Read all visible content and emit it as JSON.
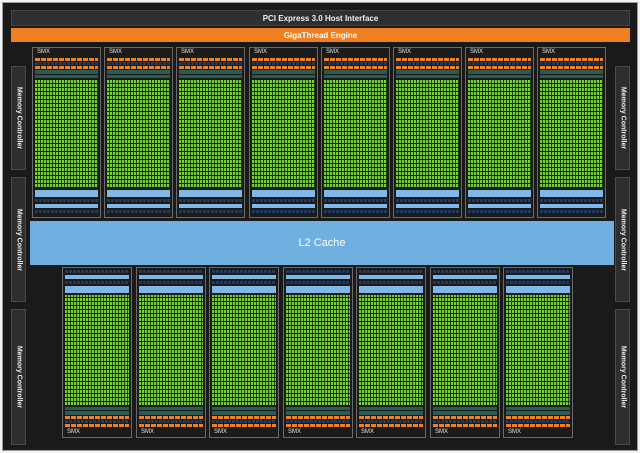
{
  "header": {
    "pcie_label": "PCI Express 3.0 Host Interface",
    "gigathread_label": "GigaThread Engine"
  },
  "memory_controllers": {
    "label": "Memory Controller",
    "left_count": 3,
    "right_count": 3
  },
  "l2_cache_label": "L2 Cache",
  "smx": {
    "label": "SMX",
    "top_row_count": 8,
    "bottom_row_count": 7
  },
  "colors": {
    "chip_background": "#1a1a1a",
    "interface_bar": "#2f2f2f",
    "gigathread": "#f07f20",
    "l2_cache": "#6fb0e0",
    "core_green": "#79cc3a",
    "register_orange": "#f08020",
    "cache_blue": "#7fb8e6"
  }
}
